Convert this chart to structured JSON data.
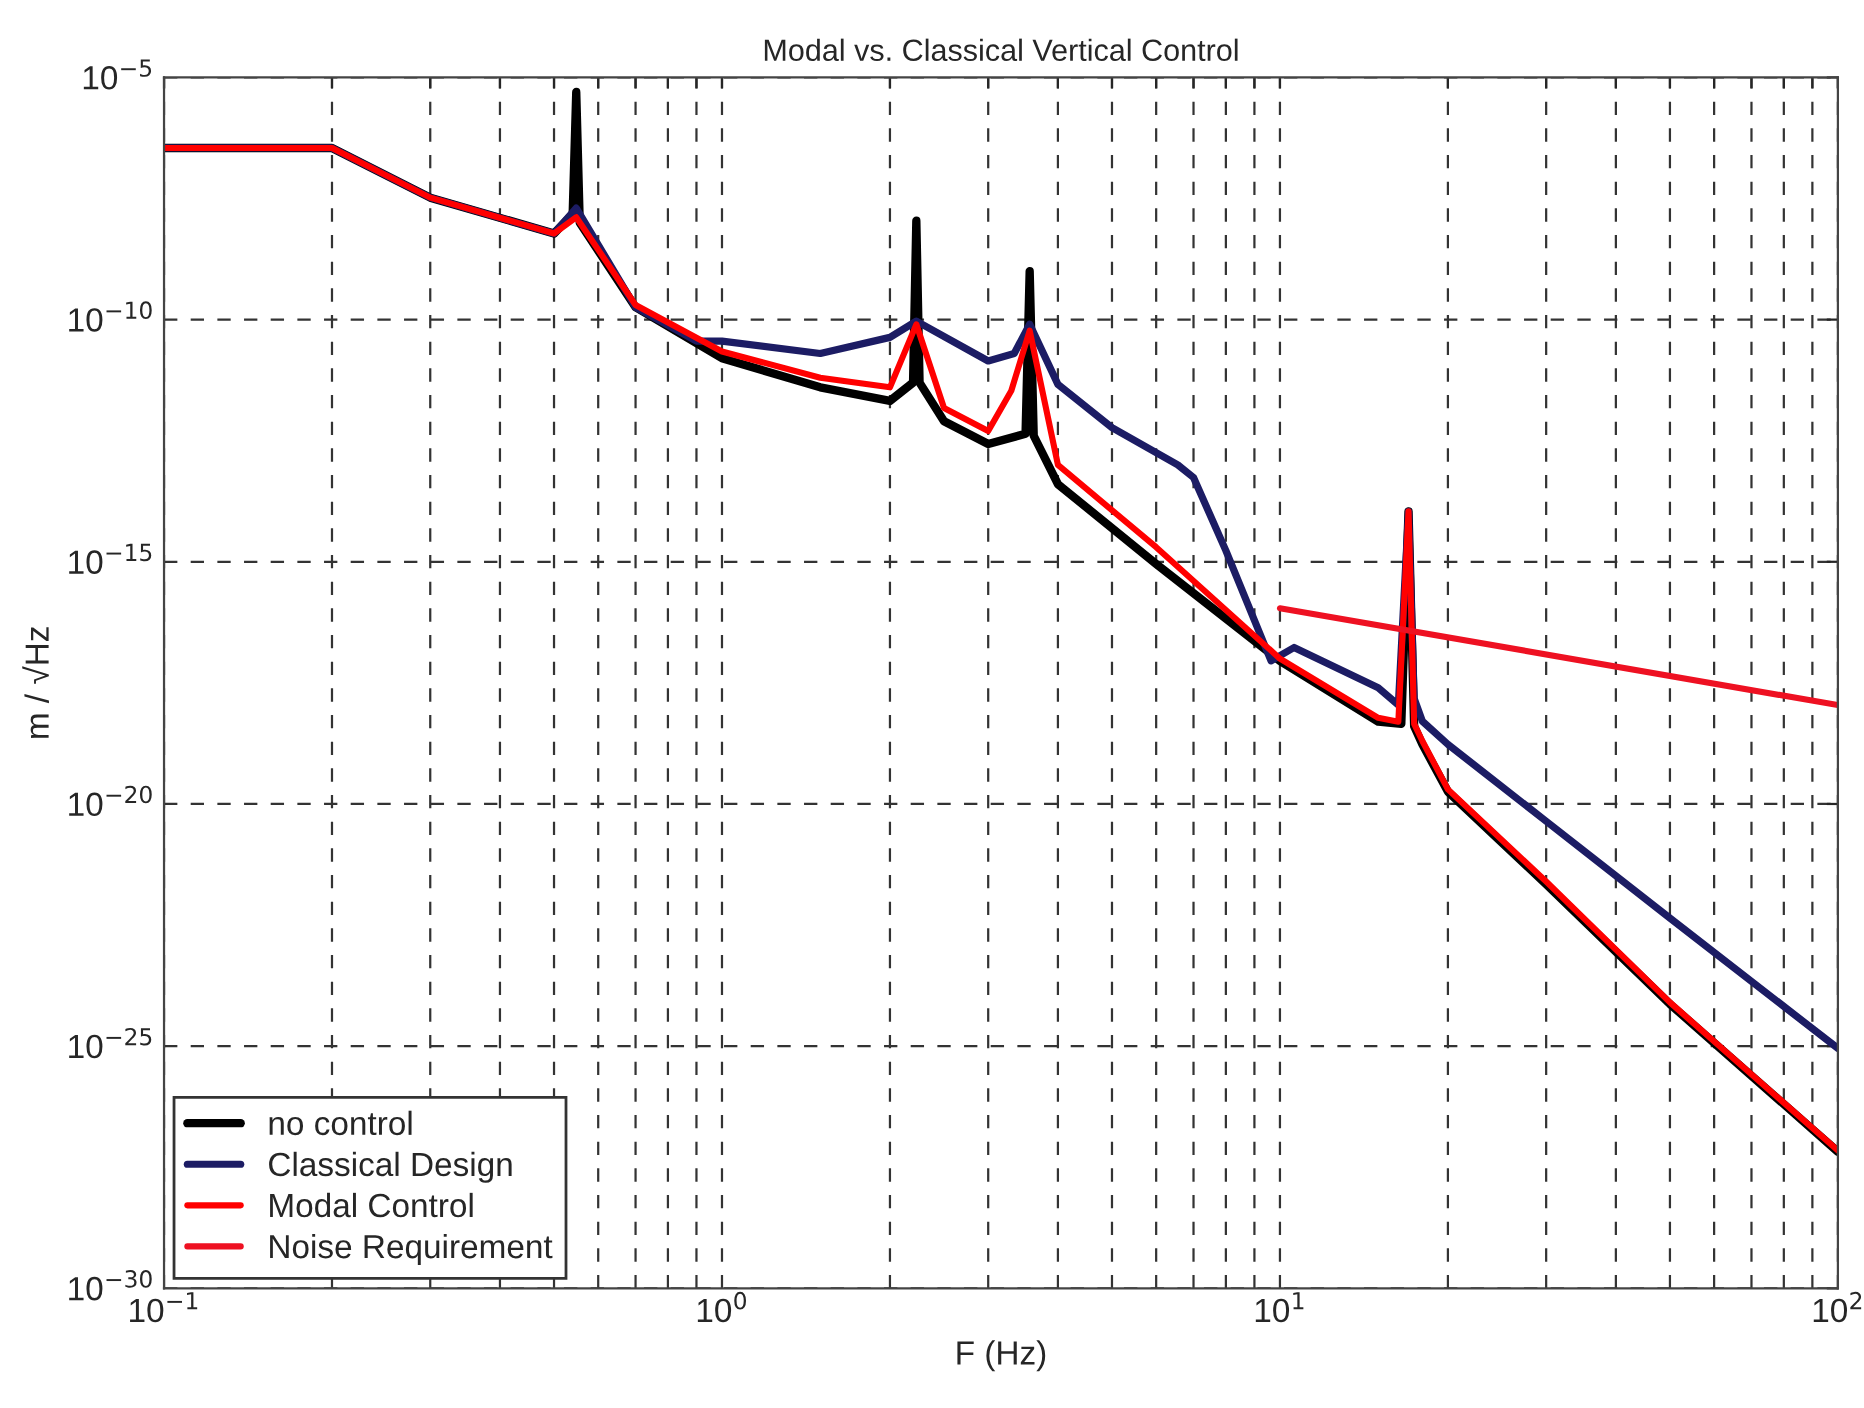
{
  "chart_data": {
    "type": "line",
    "title": "Modal vs. Classical Vertical Control",
    "xlabel": "F (Hz)",
    "ylabel": "m / √Hz",
    "log": "xy",
    "grid": true,
    "legend": "bottom left",
    "line_style": "solid",
    "marker": "none",
    "xlim": [
      0.1,
      100
    ],
    "ylim": [
      1e-30,
      1e-05
    ],
    "xticks": [
      {
        "value": 0.1,
        "label": "10$^{−1}$"
      },
      {
        "value": 0.2,
        "label": null
      },
      {
        "value": 0.3,
        "label": null
      },
      {
        "value": 0.4,
        "label": null
      },
      {
        "value": 0.5,
        "label": null
      },
      {
        "value": 0.6,
        "label": null
      },
      {
        "value": 0.7,
        "label": null
      },
      {
        "value": 0.8,
        "label": null
      },
      {
        "value": 0.9,
        "label": null
      },
      {
        "value": 1,
        "label": "10$^{0}$"
      },
      {
        "value": 2,
        "label": null
      },
      {
        "value": 3,
        "label": null
      },
      {
        "value": 4,
        "label": null
      },
      {
        "value": 5,
        "label": null
      },
      {
        "value": 6,
        "label": null
      },
      {
        "value": 7,
        "label": null
      },
      {
        "value": 8,
        "label": null
      },
      {
        "value": 9,
        "label": null
      },
      {
        "value": 10,
        "label": "10$^{1}$"
      },
      {
        "value": 20,
        "label": null
      },
      {
        "value": 30,
        "label": null
      },
      {
        "value": 40,
        "label": null
      },
      {
        "value": 50,
        "label": null
      },
      {
        "value": 60,
        "label": null
      },
      {
        "value": 70,
        "label": null
      },
      {
        "value": 80,
        "label": null
      },
      {
        "value": 90,
        "label": null
      },
      {
        "value": 100,
        "label": "10$^{2}$"
      }
    ],
    "yticks": [
      {
        "value": 1e-30,
        "label": "10$^{−30}$"
      },
      {
        "value": 1e-25,
        "label": "10$^{−25}$"
      },
      {
        "value": 1e-20,
        "label": "10$^{−20}$"
      },
      {
        "value": 1e-15,
        "label": "10$^{−15}$"
      },
      {
        "value": 1e-10,
        "label": "10$^{−10}$"
      },
      {
        "value": 1e-05,
        "label": "10$^{−5}$"
      }
    ],
    "series": [
      {
        "name": "no control",
        "color": "#000000",
        "x": [
          0.1,
          0.2,
          0.3,
          0.5,
          0.54,
          0.548,
          0.556,
          0.7,
          1,
          1.5,
          2,
          2.2,
          2.23,
          2.26,
          2.5,
          3,
          3.5,
          3.56,
          3.62,
          4,
          6,
          10,
          15,
          16.5,
          17,
          17.4,
          18,
          20,
          30,
          50,
          100
        ],
        "values": [
          3.5e-07,
          3.5e-07,
          3.3e-08,
          6e-09,
          1.5e-08,
          5e-06,
          1e-08,
          1.8e-10,
          1.6e-11,
          4e-12,
          2.1e-12,
          5e-12,
          1.1e-08,
          5e-12,
          8e-13,
          2.7e-13,
          4.4e-13,
          1e-09,
          4e-13,
          4e-14,
          9e-16,
          9e-18,
          5e-19,
          4.5e-19,
          1.1e-14,
          4e-19,
          1.7e-19,
          1.8e-20,
          2.2e-22,
          7.4e-25,
          6.6e-28
        ]
      },
      {
        "name": "Classical Design",
        "color": "#1c1c64",
        "x": [
          0.1,
          0.2,
          0.3,
          0.5,
          0.548,
          0.7,
          0.9,
          1,
          1.5,
          2,
          2.23,
          3,
          3.34,
          3.56,
          4,
          5,
          6.56,
          7,
          8,
          9.64,
          10.6,
          15,
          16.3,
          17,
          17.4,
          18,
          20,
          30,
          50,
          100
        ],
        "values": [
          3.5e-07,
          3.5e-07,
          3.3e-08,
          6e-09,
          2e-08,
          1.8e-10,
          3.6e-11,
          3.6e-11,
          2e-11,
          4.3e-11,
          9.3e-11,
          1.4e-11,
          2e-11,
          8e-11,
          4.6e-12,
          5.9e-13,
          1e-13,
          5.5e-14,
          1.7e-15,
          9e-18,
          1.7e-17,
          2.5e-18,
          1.1e-18,
          1.1e-14,
          1.5e-18,
          5.1e-19,
          1.7e-19,
          4.4e-21,
          4.4e-23,
          9e-26
        ]
      },
      {
        "name": "Modal Control",
        "color": "#ff0000",
        "x": [
          0.1,
          0.2,
          0.3,
          0.5,
          0.548,
          0.7,
          1,
          1.5,
          2,
          2.23,
          2.5,
          3,
          3.3,
          3.56,
          4,
          6,
          10,
          15,
          16.3,
          17,
          17.4,
          18,
          20,
          30,
          50,
          100
        ],
        "values": [
          3.5e-07,
          3.5e-07,
          3.3e-08,
          6e-09,
          1.3e-08,
          2e-10,
          2.2e-11,
          6.3e-12,
          4e-12,
          8e-11,
          1.5e-12,
          5e-13,
          3.4e-12,
          5.9e-11,
          1e-13,
          2e-15,
          1e-17,
          6e-19,
          5e-19,
          1.1e-14,
          4.5e-19,
          2e-19,
          2e-20,
          2.5e-22,
          8e-25,
          7e-28
        ]
      },
      {
        "name": "Noise Requirement",
        "color": "#ee1122",
        "x": [
          10,
          100
        ],
        "values": [
          1.1e-16,
          1.1e-18
        ]
      }
    ]
  }
}
